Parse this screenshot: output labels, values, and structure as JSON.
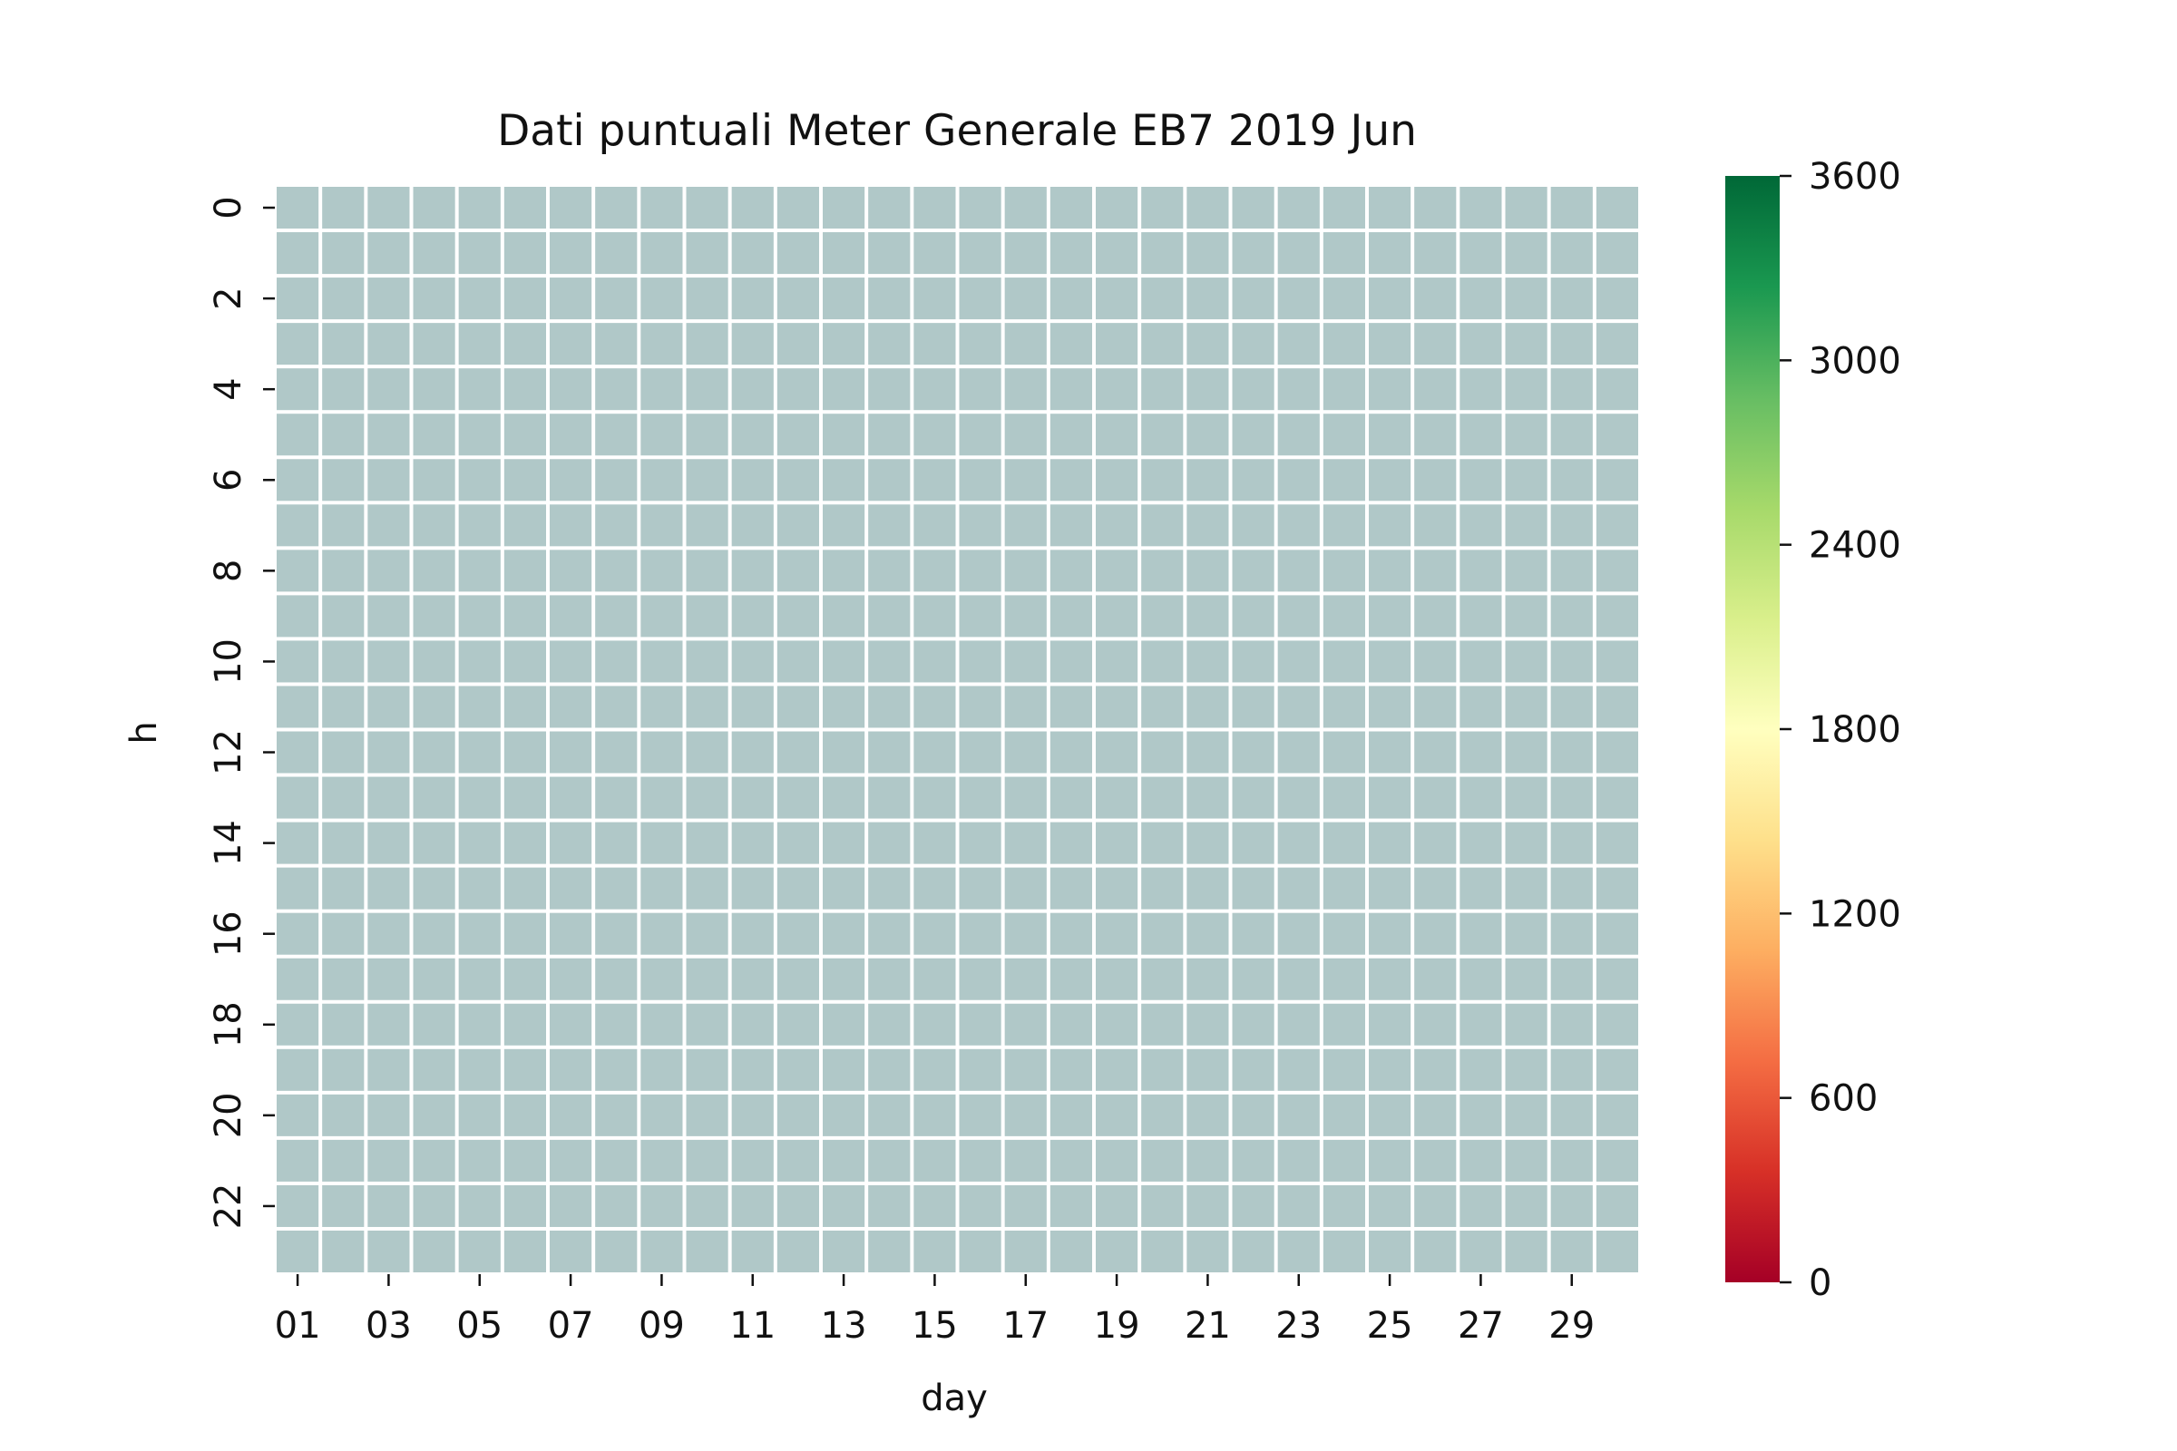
{
  "chart_data": {
    "type": "heatmap",
    "title": "Dati puntuali Meter Generale EB7 2019 Jun",
    "xlabel": "day",
    "ylabel": "h",
    "x_categories": [
      "01",
      "02",
      "03",
      "04",
      "05",
      "06",
      "07",
      "08",
      "09",
      "10",
      "11",
      "12",
      "13",
      "14",
      "15",
      "16",
      "17",
      "18",
      "19",
      "20",
      "21",
      "22",
      "23",
      "24",
      "25",
      "26",
      "27",
      "28",
      "29",
      "30"
    ],
    "x_tick_labels": [
      "01",
      "03",
      "05",
      "07",
      "09",
      "11",
      "13",
      "15",
      "17",
      "19",
      "21",
      "23",
      "25",
      "27",
      "29"
    ],
    "y_categories": [
      0,
      1,
      2,
      3,
      4,
      5,
      6,
      7,
      8,
      9,
      10,
      11,
      12,
      13,
      14,
      15,
      16,
      17,
      18,
      19,
      20,
      21,
      22,
      23
    ],
    "y_tick_labels": [
      "0",
      "2",
      "4",
      "6",
      "8",
      "10",
      "12",
      "14",
      "16",
      "18",
      "20",
      "22"
    ],
    "values": "all cells missing (no data)",
    "missing_color": "#b0c8c8",
    "colorbar": {
      "colormap": "RdYlGn",
      "range": [
        0,
        3600
      ],
      "tick_labels": [
        "0",
        "600",
        "1200",
        "1800",
        "2400",
        "3000",
        "3600"
      ],
      "colors": [
        "#a50026",
        "#d73027",
        "#f46d43",
        "#fdae61",
        "#fee08b",
        "#ffffbf",
        "#d9ef8b",
        "#a6d96a",
        "#66bd63",
        "#1a9850",
        "#006837"
      ]
    },
    "grid": false,
    "legend": "right"
  }
}
